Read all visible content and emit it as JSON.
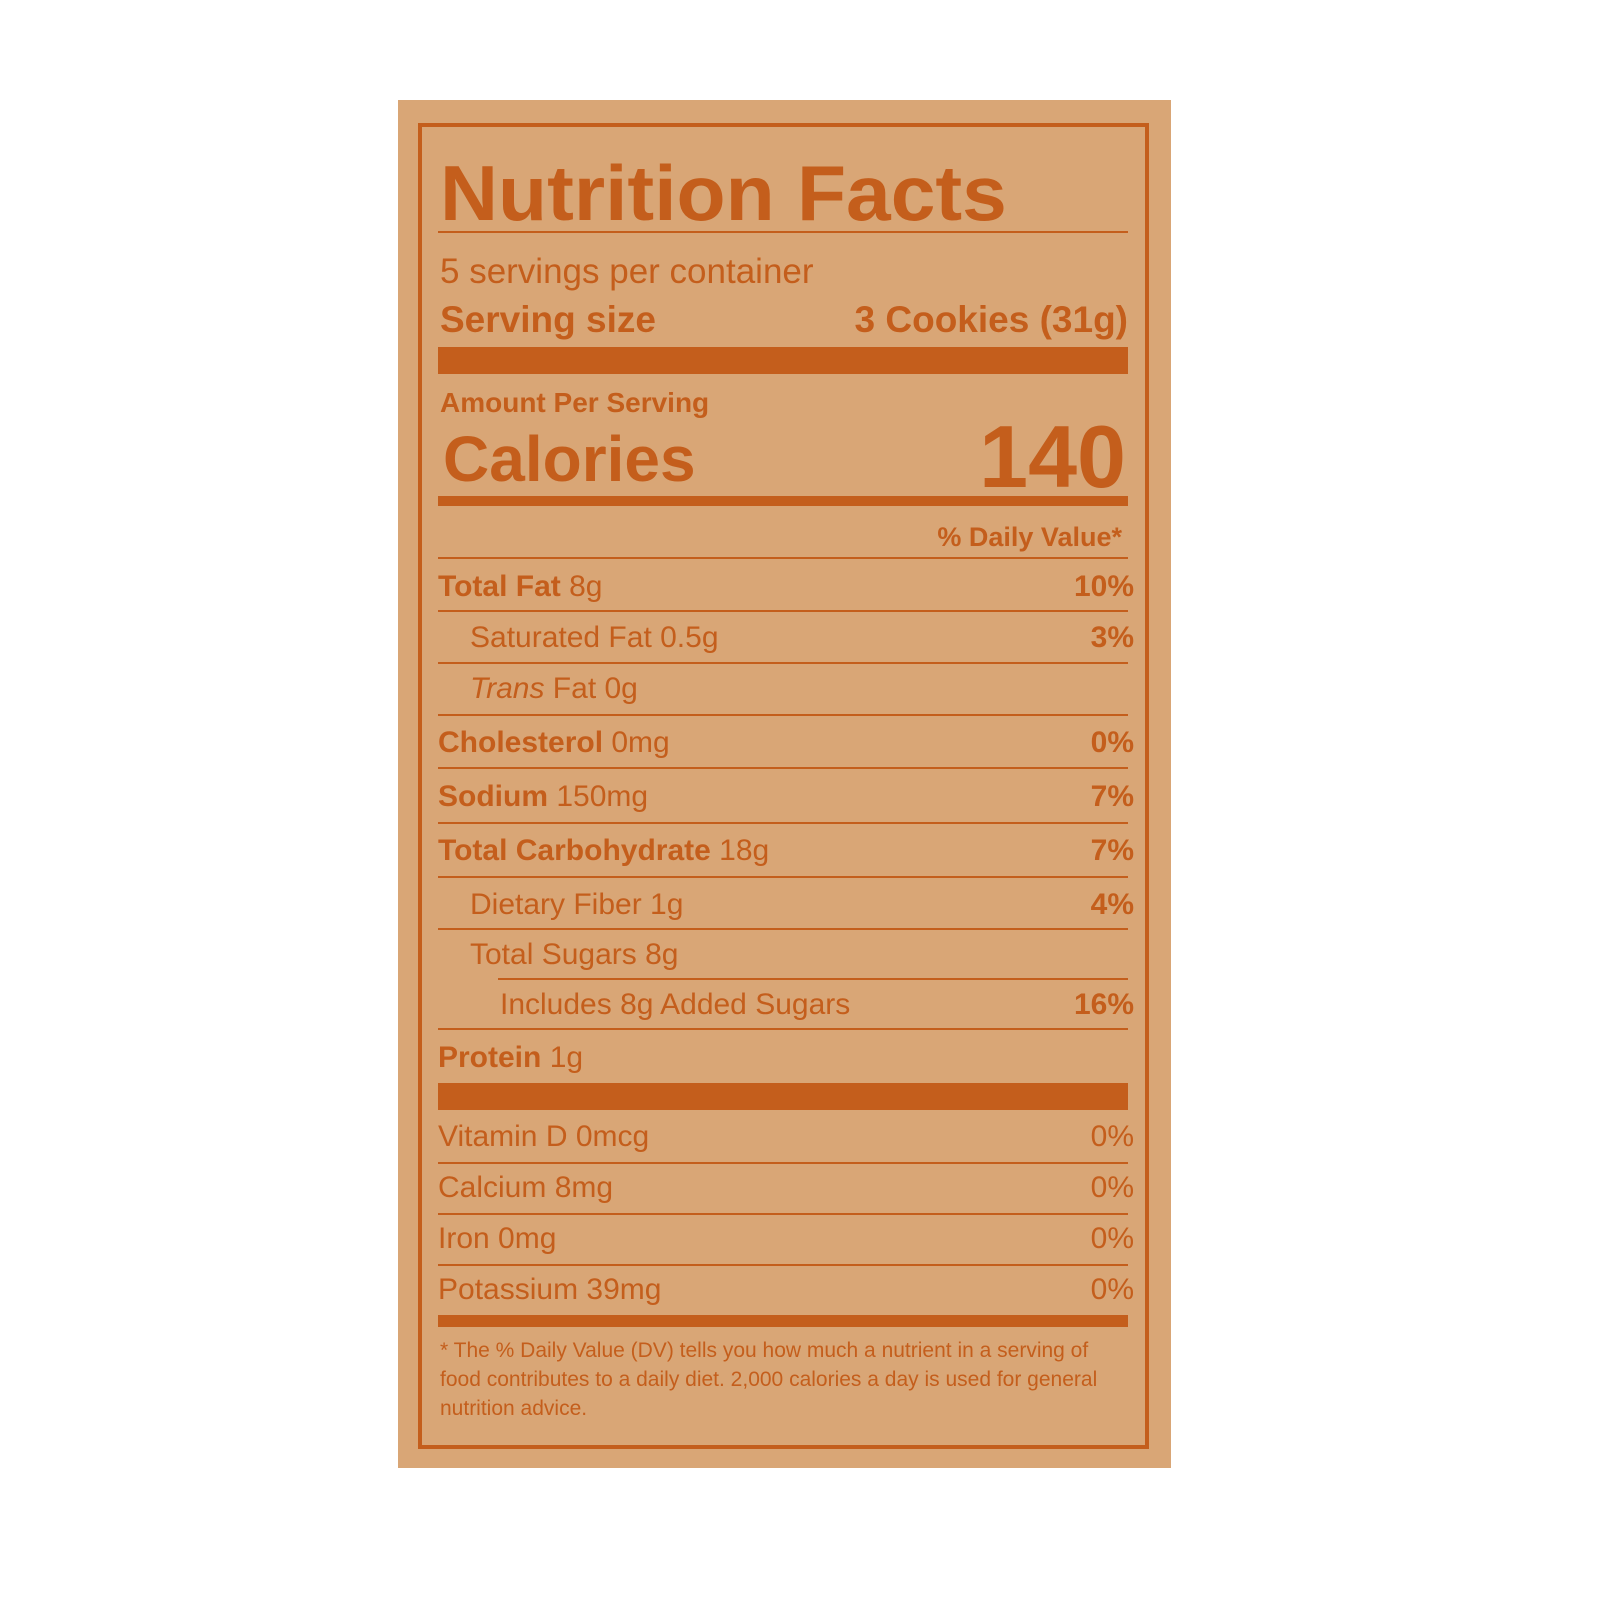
{
  "label": {
    "title": "Nutrition Facts",
    "servings_per_container": "5 servings per container",
    "serving_size_label": "Serving size",
    "serving_size_value": "3 Cookies (31g)",
    "amount_per_serving": "Amount Per Serving",
    "calories_label": "Calories",
    "calories_value": "140",
    "daily_value_header": "% Daily Value*",
    "nutrients": [
      {
        "name": "Total Fat",
        "amount": " 8g",
        "dv": "10%"
      },
      {
        "name": "Saturated Fat",
        "amount": " 0.5g",
        "dv": "3%"
      },
      {
        "name": "Trans",
        "amount": " Fat 0g",
        "dv": ""
      },
      {
        "name": "Cholesterol",
        "amount": " 0mg",
        "dv": "0%"
      },
      {
        "name": "Sodium",
        "amount": " 150mg",
        "dv": "7%"
      },
      {
        "name": "Total Carbohydrate",
        "amount": " 18g",
        "dv": "7%"
      },
      {
        "name": "Dietary Fiber",
        "amount": " 1g",
        "dv": "4%"
      },
      {
        "name": "Total Sugars",
        "amount": " 8g",
        "dv": ""
      },
      {
        "name": "Includes 8g Added Sugars",
        "amount": "",
        "dv": "16%"
      },
      {
        "name": "Protein",
        "amount": " 1g",
        "dv": ""
      }
    ],
    "vitamins": [
      {
        "name": "Vitamin D 0mcg",
        "dv": "0%"
      },
      {
        "name": "Calcium 8mg",
        "dv": "0%"
      },
      {
        "name": "Iron 0mg",
        "dv": "0%"
      },
      {
        "name": "Potassium 39mg",
        "dv": "0%"
      }
    ],
    "footnote": "* The % Daily Value (DV) tells you how much a nutrient in a serving of food contributes to a daily diet. 2,000 calories a day is used for general nutrition advice."
  },
  "colors": {
    "ink": "#c45e1c",
    "background": "#d9a676"
  }
}
